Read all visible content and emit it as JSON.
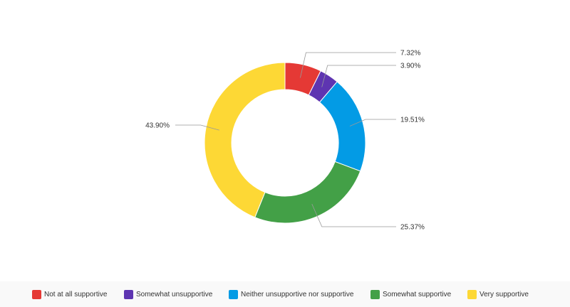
{
  "chart_data": {
    "type": "pie",
    "subtype": "donut",
    "categories": [
      "Not at all supportive",
      "Somewhat unsupportive",
      "Neither unsupportive nor supportive",
      "Somewhat supportive",
      "Very supportive"
    ],
    "values": [
      7.32,
      3.9,
      19.51,
      25.37,
      43.9
    ],
    "labels": [
      "7.32%",
      "3.90%",
      "19.51%",
      "25.37%",
      "43.90%"
    ],
    "colors": [
      "#e53935",
      "#5e35b1",
      "#039be5",
      "#43a047",
      "#fdd835"
    ],
    "title": "",
    "legend_position": "bottom"
  }
}
